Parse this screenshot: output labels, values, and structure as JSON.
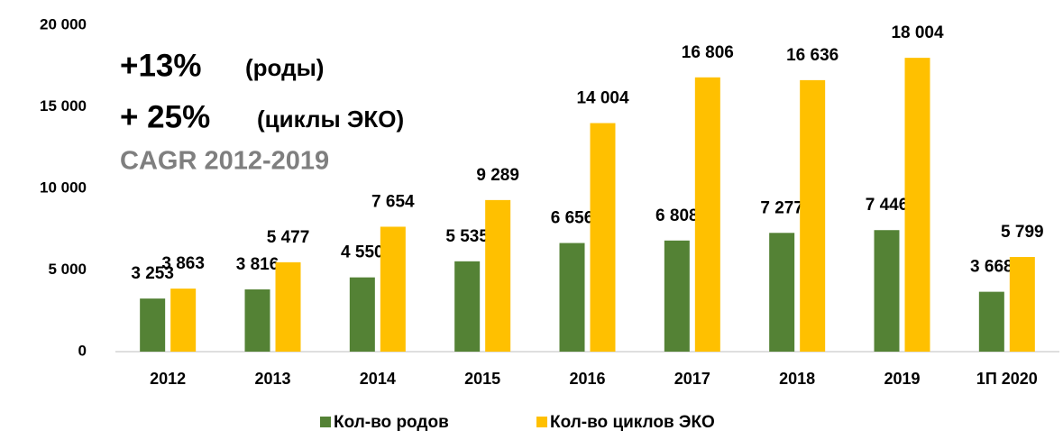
{
  "chart_data": {
    "type": "bar",
    "annotations": [
      "+13%",
      "(роды)",
      "+ 25%",
      "(циклы ЭКО)",
      "CAGR 2012-2019"
    ],
    "categories": [
      "2012",
      "2013",
      "2014",
      "2015",
      "2016",
      "2017",
      "2018",
      "2019",
      "1П 2020"
    ],
    "series": [
      {
        "name": "Кол-во родов",
        "color": "#548235",
        "values": [
          3253,
          3816,
          4550,
          5535,
          6656,
          6808,
          7277,
          7446,
          3668
        ],
        "value_labels": [
          "3 253",
          "3 816",
          "4 550",
          "5 535",
          "6 656",
          "6 808",
          "7 277",
          "7 446",
          "3 668"
        ]
      },
      {
        "name": "Кол-во циклов ЭКО",
        "color": "#ffc000",
        "values": [
          3863,
          5477,
          7654,
          9289,
          14004,
          16806,
          16636,
          18004,
          5799
        ],
        "value_labels": [
          "3 863",
          "5 477",
          "7 654",
          "9 289",
          "14 004",
          "16 806",
          "16 636",
          "18 004",
          "5 799"
        ]
      }
    ],
    "ylim": [
      0,
      20000
    ],
    "yticks": [
      0,
      {
        "value": 5000,
        "label": "5 000"
      },
      {
        "value": 10000,
        "label": "10 000"
      },
      {
        "value": 15000,
        "label": "15 000"
      },
      {
        "value": 20000,
        "label": "20 000"
      }
    ],
    "grid": false,
    "legend": "bottom"
  }
}
